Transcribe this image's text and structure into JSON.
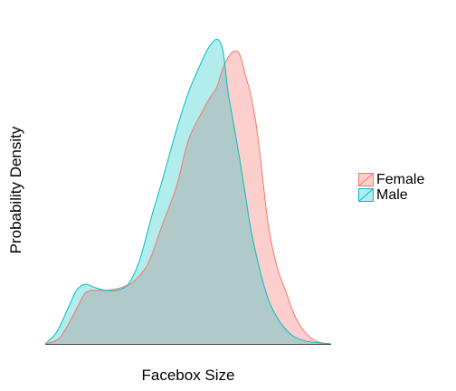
{
  "chart_data": {
    "type": "area",
    "xlabel": "Facebox Size",
    "ylabel": "Probability Density",
    "xlim": [
      0,
      1
    ],
    "ylim": [
      0,
      1
    ],
    "x_ticks_shown": false,
    "y_ticks_shown": false,
    "grid": false,
    "legend_position": "right",
    "series": [
      {
        "name": "Female",
        "fill": "#f8766d",
        "stroke": "#f8766d",
        "fill_opacity": 0.35,
        "x": [
          0.0,
          0.05,
          0.1,
          0.14,
          0.18,
          0.22,
          0.27,
          0.31,
          0.36,
          0.41,
          0.46,
          0.5,
          0.55,
          0.58,
          0.6,
          0.62,
          0.64,
          0.66,
          0.68,
          0.7,
          0.72,
          0.74,
          0.76,
          0.78,
          0.81,
          0.84,
          0.87,
          0.9,
          0.93,
          0.96,
          1.0
        ],
        "y": [
          0.0,
          0.02,
          0.1,
          0.17,
          0.18,
          0.18,
          0.19,
          0.21,
          0.27,
          0.4,
          0.53,
          0.68,
          0.78,
          0.83,
          0.86,
          0.92,
          0.96,
          0.98,
          0.97,
          0.9,
          0.83,
          0.72,
          0.56,
          0.4,
          0.26,
          0.18,
          0.1,
          0.05,
          0.02,
          0.005,
          0.0
        ]
      },
      {
        "name": "Male",
        "fill": "#00bfc4",
        "stroke": "#00bfc4",
        "fill_opacity": 0.3,
        "x": [
          0.0,
          0.04,
          0.08,
          0.11,
          0.14,
          0.17,
          0.21,
          0.25,
          0.29,
          0.33,
          0.37,
          0.41,
          0.46,
          0.5,
          0.54,
          0.57,
          0.6,
          0.62,
          0.63,
          0.64,
          0.66,
          0.68,
          0.7,
          0.72,
          0.75,
          0.78,
          0.81,
          0.84,
          0.87,
          0.91,
          0.95,
          1.0
        ],
        "y": [
          0.0,
          0.04,
          0.12,
          0.18,
          0.2,
          0.19,
          0.18,
          0.18,
          0.2,
          0.28,
          0.42,
          0.55,
          0.72,
          0.84,
          0.93,
          0.99,
          1.02,
          0.99,
          0.92,
          0.84,
          0.73,
          0.62,
          0.5,
          0.38,
          0.25,
          0.15,
          0.09,
          0.05,
          0.025,
          0.01,
          0.004,
          0.0
        ]
      }
    ]
  }
}
